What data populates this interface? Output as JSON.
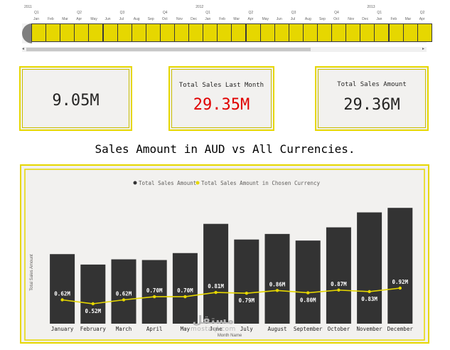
{
  "timeline": {
    "years": [
      {
        "label": "2011",
        "col": 0
      },
      {
        "label": "2012",
        "col": 12
      },
      {
        "label": "2013",
        "col": 24
      }
    ],
    "quarters": [
      {
        "label": "Q1",
        "col": 0
      },
      {
        "label": "Q2",
        "col": 3
      },
      {
        "label": "Q3",
        "col": 6
      },
      {
        "label": "Q4",
        "col": 9
      },
      {
        "label": "Q1",
        "col": 12
      },
      {
        "label": "Q2",
        "col": 15
      },
      {
        "label": "Q3",
        "col": 18
      },
      {
        "label": "Q4",
        "col": 21
      },
      {
        "label": "Q1",
        "col": 24
      },
      {
        "label": "Q2",
        "col": 27
      }
    ],
    "months": [
      "Jan",
      "Feb",
      "Mar",
      "Apr",
      "May",
      "Jun",
      "Jul",
      "Aug",
      "Sep",
      "Oct",
      "Nov",
      "Dec",
      "Jan",
      "Feb",
      "Mar",
      "Apr",
      "May",
      "Jun",
      "Jul",
      "Aug",
      "Sep",
      "Oct",
      "Nov",
      "Dec",
      "Jan",
      "Feb",
      "Mar",
      "Apr"
    ]
  },
  "cards": [
    {
      "title": "",
      "value": "9.05M",
      "color": "#252423"
    },
    {
      "title": "Total Sales Last Month",
      "value": "29.35M",
      "color": "#e00000"
    },
    {
      "title": "Total Sales Amount",
      "value": "29.36M",
      "color": "#252423"
    }
  ],
  "chart_heading": "Sales Amount in AUD vs All Currencies.",
  "watermark": {
    "arabic": "مستقل",
    "latin": "mostaql.com"
  },
  "chart_data": {
    "type": "bar",
    "legend_position": "top-center",
    "grid": false,
    "xlabel": "Month Name",
    "ylabel": "Total Sales Amount",
    "categories": [
      "January",
      "February",
      "March",
      "April",
      "May",
      "June",
      "July",
      "August",
      "September",
      "October",
      "November",
      "December"
    ],
    "series": [
      {
        "name": "Total Sales Amount",
        "kind": "bar",
        "color": "#333333",
        "values": [
          2.0,
          1.7,
          1.85,
          1.83,
          2.03,
          2.87,
          2.42,
          2.58,
          2.39,
          2.77,
          3.2,
          3.33
        ]
      },
      {
        "name": "Total Sales Amount in Chosen Currency",
        "kind": "line",
        "color": "#e6d700",
        "values": [
          0.62,
          0.52,
          0.62,
          0.7,
          0.7,
          0.81,
          0.79,
          0.86,
          0.8,
          0.87,
          0.83,
          0.92
        ],
        "labels": [
          "0.62M",
          "0.52M",
          "0.62M",
          "0.70M",
          "0.70M",
          "0.81M",
          "0.79M",
          "0.86M",
          "0.80M",
          "0.87M",
          "0.83M",
          "0.92M"
        ]
      }
    ],
    "ylim": [
      0,
      3.6
    ]
  }
}
